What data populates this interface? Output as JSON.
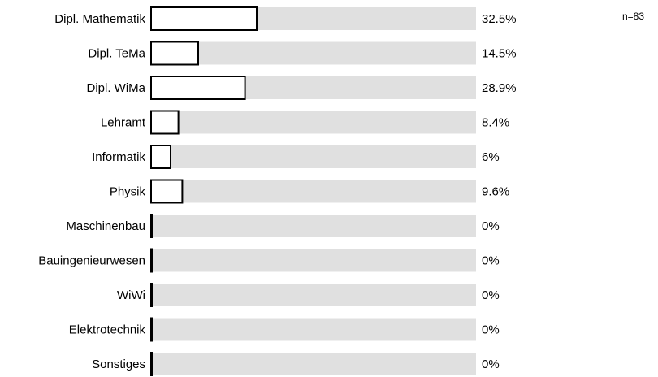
{
  "chart_data": {
    "type": "bar",
    "orientation": "horizontal",
    "categories": [
      "Dipl. Mathematik",
      "Dipl. TeMa",
      "Dipl. WiMa",
      "Lehramt",
      "Informatik",
      "Physik",
      "Maschinenbau",
      "Bauingenieurwesen",
      "WiWi",
      "Elektrotechnik",
      "Sonstiges"
    ],
    "values": [
      32.5,
      14.5,
      28.9,
      8.4,
      6,
      9.6,
      0,
      0,
      0,
      0,
      0
    ],
    "value_labels": [
      "32.5%",
      "14.5%",
      "28.9%",
      "8.4%",
      "6%",
      "9.6%",
      "0%",
      "0%",
      "0%",
      "0%",
      "0%"
    ],
    "xlim": [
      0,
      100
    ],
    "n_label": "n=83",
    "colors": {
      "bar_fill": "#ffffff",
      "bar_stroke": "#000000",
      "track": "#e0e0e0"
    }
  }
}
